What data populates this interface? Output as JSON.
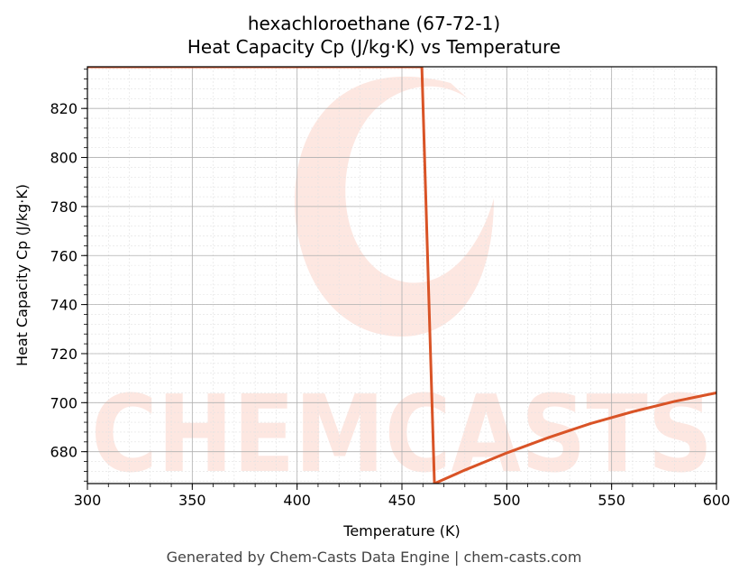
{
  "chart_data": {
    "type": "line",
    "title_line1": "hexachloroethane (67-72-1)",
    "title_line2": "Heat Capacity Cp (J/kg·K) vs Temperature",
    "xlabel": "Temperature (K)",
    "ylabel": "Heat Capacity Cp (J/kg·K)",
    "xlim": [
      300,
      600
    ],
    "ylim": [
      667,
      837
    ],
    "xticks": [
      300,
      350,
      400,
      450,
      500,
      550,
      600
    ],
    "yticks": [
      680,
      700,
      720,
      740,
      760,
      780,
      800,
      820
    ],
    "grid": true,
    "series": [
      {
        "color": "#d95326",
        "x": [
          300,
          340,
          380,
          420,
          459.5,
          465.5,
          480,
          500,
          520,
          540,
          560,
          580,
          600
        ],
        "y": [
          837,
          837,
          837,
          837,
          837,
          667,
          672.5,
          679.5,
          685.8,
          691.5,
          696.3,
          700.5,
          704
        ]
      }
    ]
  },
  "watermark": {
    "text": "CHEMCASTS",
    "color": "#fde3dc"
  },
  "footer": "Generated by Chem-Casts Data Engine | chem-casts.com"
}
